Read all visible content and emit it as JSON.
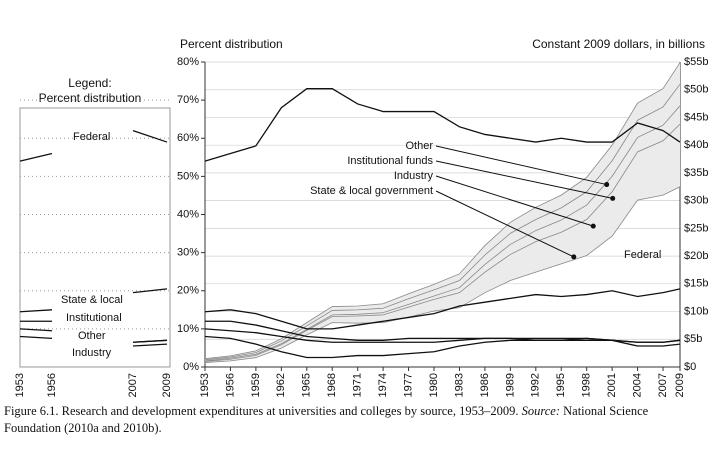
{
  "chart_data": {
    "type": "line",
    "y_label": "Percent distribution",
    "y2_label": "Constant 2009 dollars, in billions",
    "x": [
      1953,
      1956,
      1959,
      1962,
      1965,
      1968,
      1971,
      1974,
      1977,
      1980,
      1983,
      1986,
      1989,
      1992,
      1995,
      1998,
      2001,
      2004,
      2007,
      2009
    ],
    "xlim": [
      1953,
      2009
    ],
    "xticks": [
      1953,
      1956,
      1959,
      1962,
      1965,
      1968,
      1971,
      1974,
      1977,
      1980,
      1983,
      1986,
      1989,
      1992,
      1995,
      1998,
      2001,
      2004,
      2007,
      2009
    ],
    "ylim": [
      0,
      80
    ],
    "yticks": [
      {
        "value": 0,
        "label": "0%"
      },
      {
        "value": 10,
        "label": "10%"
      },
      {
        "value": 20,
        "label": "20%"
      },
      {
        "value": 30,
        "label": "30%"
      },
      {
        "value": 40,
        "label": "40%"
      },
      {
        "value": 50,
        "label": "50%"
      },
      {
        "value": 60,
        "label": "60%"
      },
      {
        "value": 70,
        "label": "70%"
      },
      {
        "value": 80,
        "label": "80%"
      }
    ],
    "y2lim": [
      0,
      55
    ],
    "y2ticks": [
      {
        "value": 0,
        "label": "$0"
      },
      {
        "value": 5,
        "label": "$5b"
      },
      {
        "value": 10,
        "label": "$10b"
      },
      {
        "value": 15,
        "label": "$15b"
      },
      {
        "value": 20,
        "label": "$20b"
      },
      {
        "value": 25,
        "label": "$25b"
      },
      {
        "value": 30,
        "label": "$30b"
      },
      {
        "value": 35,
        "label": "$35b"
      },
      {
        "value": 40,
        "label": "$40b"
      },
      {
        "value": 45,
        "label": "$45b"
      },
      {
        "value": 50,
        "label": "$50b"
      },
      {
        "value": 55,
        "label": "$55b"
      }
    ],
    "stacked_y2": true,
    "legend": {
      "title": [
        "Legend:",
        "Percent distribution"
      ]
    },
    "series": [
      {
        "name": "Federal",
        "color": "#111111",
        "axis": "y",
        "values": [
          54,
          56,
          58,
          68,
          73,
          73,
          69,
          67,
          67,
          67,
          63,
          61,
          60,
          59,
          60,
          59,
          59,
          64,
          62,
          59
        ]
      },
      {
        "name": "State & local",
        "color": "#111111",
        "axis": "y",
        "values": [
          14.5,
          15,
          14,
          12,
          10,
          10,
          11,
          12,
          13,
          14,
          16,
          17,
          18,
          19,
          18.5,
          19,
          20,
          18.5,
          19.5,
          20.5
        ]
      },
      {
        "name": "Institutional",
        "color": "#111111",
        "axis": "y",
        "values": [
          12,
          12,
          11,
          9.5,
          8,
          7.5,
          7,
          7,
          7.5,
          7.5,
          7.5,
          7.5,
          7.5,
          7,
          7,
          7,
          7,
          6.5,
          6.5,
          7
        ]
      },
      {
        "name": "Other",
        "color": "#111111",
        "axis": "y",
        "values": [
          10,
          9.5,
          9,
          8,
          7,
          6.5,
          6.5,
          6.5,
          6.5,
          6.5,
          7,
          7.5,
          7.5,
          7.5,
          7.5,
          7.5,
          7,
          6.5,
          6.5,
          7
        ]
      },
      {
        "name": "Industry",
        "color": "#111111",
        "axis": "y",
        "values": [
          8,
          7.5,
          6,
          4,
          2.5,
          2.5,
          3,
          3,
          3.5,
          4,
          5.5,
          6.5,
          7,
          7,
          7,
          7.5,
          7,
          5.5,
          5.5,
          6
        ]
      },
      {
        "name": "Federal",
        "color": "#888888",
        "axis": "y2",
        "values": [
          0.8,
          1.1,
          1.7,
          3.4,
          5.8,
          8.0,
          7.9,
          8.0,
          9.0,
          10.1,
          10.7,
          13.4,
          15.6,
          17.1,
          18.6,
          20.1,
          23.6,
          30.1,
          31.0,
          32.5
        ]
      },
      {
        "name": "State & local government",
        "color": "#888888",
        "axis": "y2",
        "values": [
          0.2,
          0.3,
          0.4,
          0.6,
          0.8,
          1.1,
          1.3,
          1.4,
          1.8,
          2.1,
          2.7,
          3.7,
          4.7,
          5.5,
          5.7,
          6.5,
          8.0,
          8.7,
          9.8,
          11.3
        ]
      },
      {
        "name": "Industry",
        "color": "#888888",
        "axis": "y2",
        "values": [
          0.1,
          0.2,
          0.2,
          0.2,
          0.2,
          0.3,
          0.3,
          0.4,
          0.5,
          0.6,
          0.9,
          1.4,
          1.8,
          2.0,
          2.2,
          2.6,
          2.8,
          2.6,
          2.8,
          3.3
        ]
      },
      {
        "name": "Institutional funds",
        "color": "#888888",
        "axis": "y2",
        "values": [
          0.2,
          0.2,
          0.3,
          0.5,
          0.6,
          0.8,
          0.8,
          0.8,
          1.0,
          1.1,
          1.3,
          1.7,
          2.0,
          2.0,
          2.2,
          2.4,
          2.8,
          3.1,
          3.3,
          3.9
        ]
      },
      {
        "name": "Other",
        "color": "#888888",
        "axis": "y2",
        "values": [
          0.2,
          0.2,
          0.3,
          0.4,
          0.6,
          0.7,
          0.7,
          0.8,
          0.9,
          1.0,
          1.2,
          1.7,
          2.0,
          2.2,
          2.3,
          2.6,
          2.8,
          3.1,
          3.3,
          3.9
        ]
      }
    ]
  },
  "caption": {
    "text": "Figure 6.1. Research and development expenditures at universities and colleges by source, 1953–2009.",
    "source_label": "Source:",
    "source": "National Science Foundation (2010a and 2010b)."
  }
}
